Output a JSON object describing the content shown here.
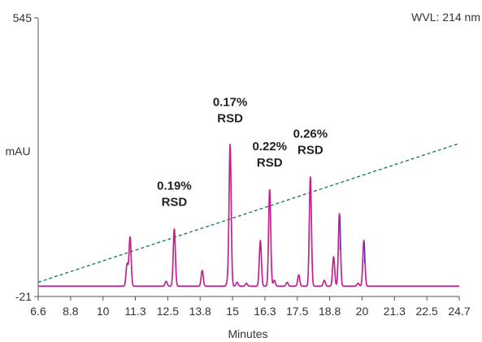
{
  "chart_data": {
    "type": "line",
    "xlabel": "Minutes",
    "ylabel": "mAU",
    "wavelength_label": "WVL: 214 nm",
    "xlim": [
      6.6,
      24.7
    ],
    "ylim": [
      -21,
      545
    ],
    "x_ticks": [
      "6.6",
      "8.8",
      "10",
      "11.3",
      "12.5",
      "13.8",
      "15",
      "16.3",
      "17.5",
      "18.8",
      "20",
      "21.3",
      "22.5",
      "24.7"
    ],
    "y_ticks": [
      "545",
      "-21"
    ],
    "colors": {
      "chromatogram": "#c2228f",
      "overlay": "#4a3fae",
      "gradient": "#1e7a6e",
      "axis": "#555555"
    },
    "baseline": 0,
    "peaks": [
      {
        "rt": 10.42,
        "height": 45
      },
      {
        "rt": 10.55,
        "height": 100
      },
      {
        "rt": 12.1,
        "height": 10
      },
      {
        "rt": 12.45,
        "height": 117
      },
      {
        "rt": 13.65,
        "height": 32
      },
      {
        "rt": 14.75,
        "height": 12
      },
      {
        "rt": 14.85,
        "height": 287
      },
      {
        "rt": 15.15,
        "height": 8
      },
      {
        "rt": 15.55,
        "height": 6
      },
      {
        "rt": 16.15,
        "height": 93
      },
      {
        "rt": 16.55,
        "height": 197
      },
      {
        "rt": 16.75,
        "height": 12
      },
      {
        "rt": 17.3,
        "height": 8
      },
      {
        "rt": 17.8,
        "height": 23
      },
      {
        "rt": 18.3,
        "height": 222
      },
      {
        "rt": 18.9,
        "height": 12
      },
      {
        "rt": 19.3,
        "height": 60
      },
      {
        "rt": 19.55,
        "height": 148
      },
      {
        "rt": 20.35,
        "height": 6
      },
      {
        "rt": 20.6,
        "height": 93
      }
    ],
    "gradient_line": {
      "x": [
        6.6,
        24.7
      ],
      "y": [
        8,
        290
      ]
    },
    "annotations": [
      {
        "line1": "0.19%",
        "line2": "RSD",
        "x": 12.45
      },
      {
        "line1": "0.17%",
        "line2": "RSD",
        "x": 14.85
      },
      {
        "line1": "0.22%",
        "line2": "RSD",
        "x": 16.55
      },
      {
        "line1": "0.26%",
        "line2": "RSD",
        "x": 18.3
      }
    ]
  }
}
